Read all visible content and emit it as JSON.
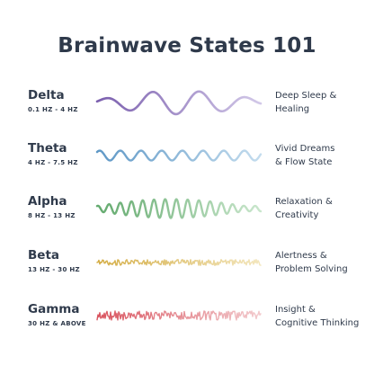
{
  "title": "Brainwave States 101",
  "waves": [
    {
      "name": "Delta",
      "range": "0.1 HZ - 4 HZ",
      "desc_line1": "Deep Sleep &",
      "desc_line2": "Healing",
      "color_start": "#7b5fae",
      "color_end": "#d2c8e8"
    },
    {
      "name": "Theta",
      "range": "4 HZ - 7.5 HZ",
      "desc_line1": "Vivid Dreams",
      "desc_line2": "& Flow State",
      "color_start": "#5f98c6",
      "color_end": "#c3dcee"
    },
    {
      "name": "Alpha",
      "range": "8 HZ - 13 HZ",
      "desc_line1": "Relaxation &",
      "desc_line2": "Creativity",
      "color_start": "#63aa6e",
      "color_end": "#c9e6cc"
    },
    {
      "name": "Beta",
      "range": "13 HZ - 30 HZ",
      "desc_line1": "Alertness &",
      "desc_line2": "Problem Solving",
      "color_start": "#d4ad45",
      "color_end": "#f3e6bd"
    },
    {
      "name": "Gamma",
      "range": "30 HZ & ABOVE",
      "desc_line1": "Insight &",
      "desc_line2": "Cognitive Thinking",
      "color_start": "#d9545f",
      "color_end": "#f2c9cc"
    }
  ]
}
